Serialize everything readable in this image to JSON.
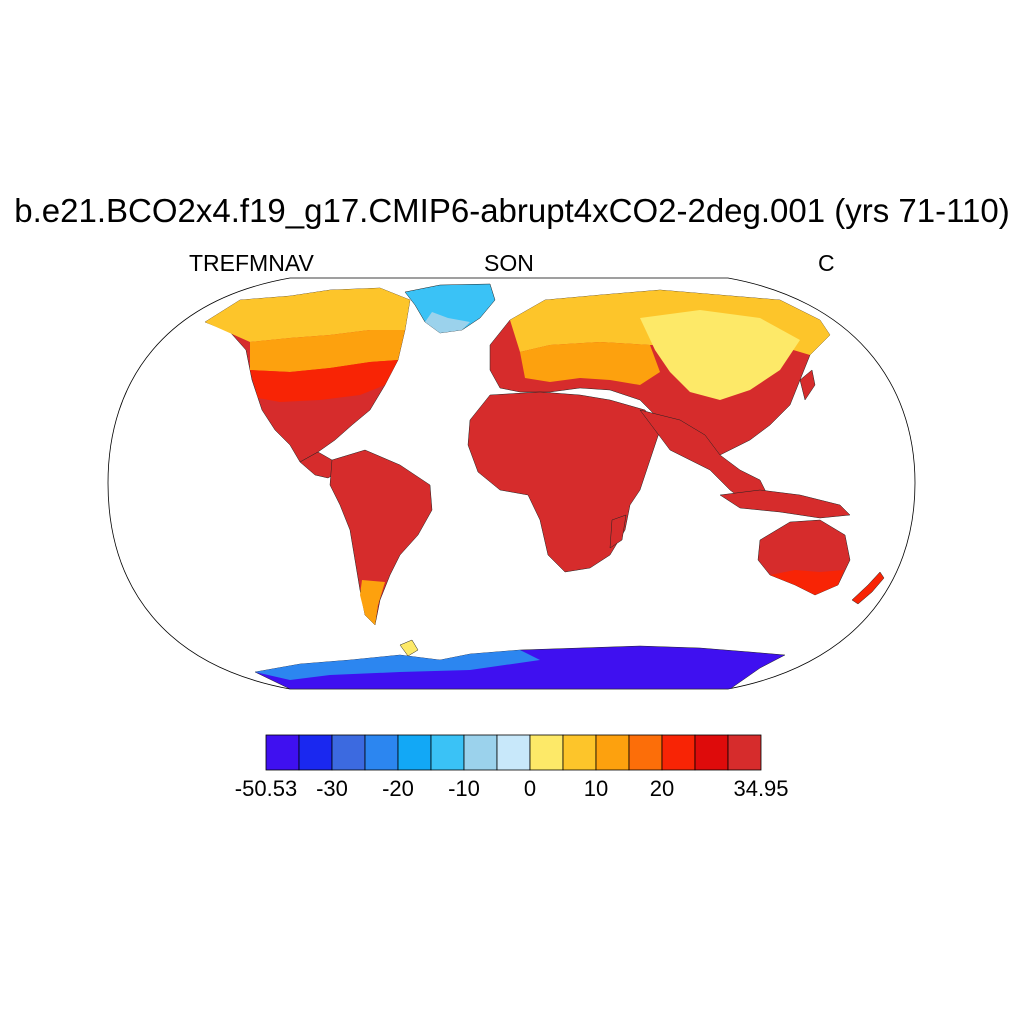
{
  "title": "b.e21.BCO2x4.f19_g17.CMIP6-abrupt4xCO2-2deg.001 (yrs 71-110)",
  "subtitle_left": "TREFMNAV",
  "subtitle_center": "SON",
  "subtitle_right": "C",
  "colorbar": {
    "colors": [
      "#3f10f0",
      "#1a28f0",
      "#3c6ae0",
      "#2c86f0",
      "#12a8f6",
      "#3ac2f6",
      "#9bd2ec",
      "#c8e8fa",
      "#fde968",
      "#fdc52a",
      "#fda10e",
      "#fc6e09",
      "#f82405",
      "#de0b0b",
      "#d62c2c"
    ],
    "min_label": "-50.53",
    "max_label": "34.95",
    "ticks": [
      "-30",
      "-20",
      "-10",
      "0",
      "10",
      "20"
    ]
  }
}
